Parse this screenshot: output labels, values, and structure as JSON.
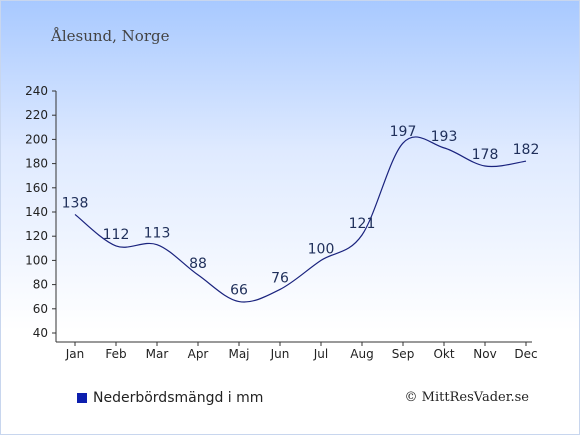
{
  "title": "Ålesund, Norge",
  "legend_label": "Nederbördsmängd i mm",
  "credit": "© MittResVader.se",
  "colors": {
    "line": "#1a237e",
    "swatch": "#0d1fae",
    "axis": "#333333",
    "text": "#222222"
  },
  "chart_data": {
    "type": "line",
    "categories": [
      "Jan",
      "Feb",
      "Mar",
      "Apr",
      "Maj",
      "Jun",
      "Jul",
      "Aug",
      "Sep",
      "Okt",
      "Nov",
      "Dec"
    ],
    "series": [
      {
        "name": "Nederbördsmängd i mm",
        "values": [
          138,
          112,
          113,
          88,
          66,
          76,
          100,
          121,
          197,
          193,
          178,
          182
        ]
      }
    ],
    "ylim": [
      40,
      240
    ],
    "yticks": [
      40,
      60,
      80,
      100,
      120,
      140,
      160,
      180,
      200,
      220,
      240
    ],
    "grid": false,
    "legend_position": "bottom-left"
  }
}
